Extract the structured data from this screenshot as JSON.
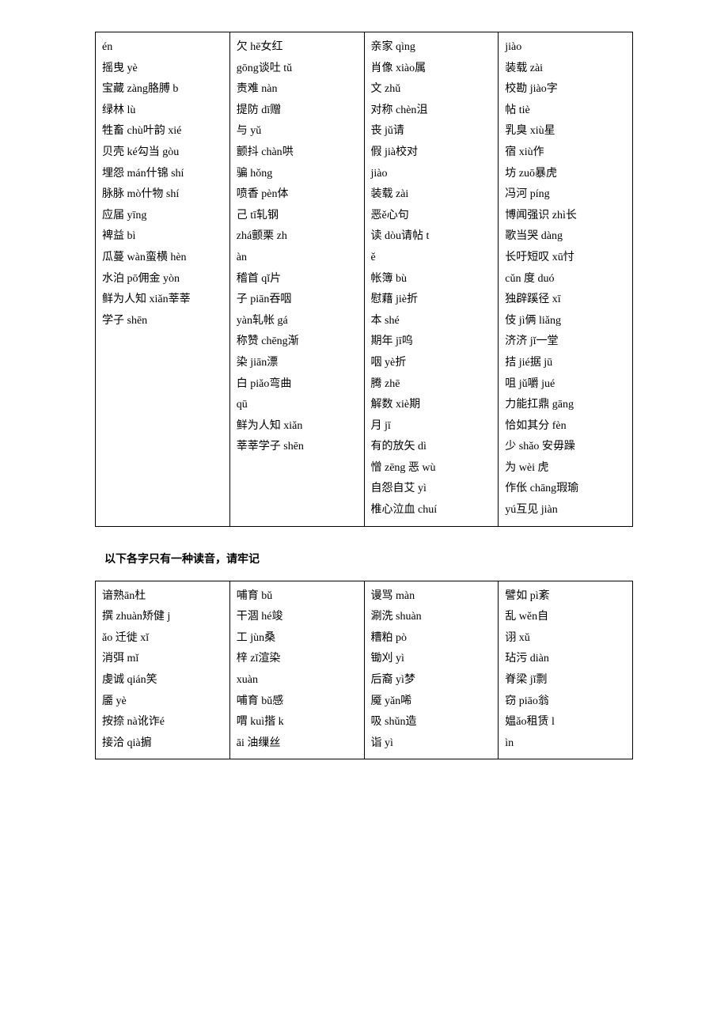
{
  "table1": {
    "columns": 4,
    "cells": [
      [
        [
          [
            "én",
            ""
          ],
          [
            "摇曳 yè",
            ""
          ],
          [
            "",
            ""
          ],
          [
            "宝藏 zàng",
            "胳膊 b"
          ],
          [
            "绿林 lù",
            ""
          ],
          [
            "牲畜 chù",
            "叶韵 xié"
          ],
          [
            "贝壳 ké",
            "勾当 gòu"
          ],
          [
            "埋怨 mán",
            "什锦 shí"
          ],
          [
            "脉脉 mò",
            "什物 shí"
          ],
          [
            "应届 yīng",
            ""
          ],
          [
            "裨益 bì",
            ""
          ],
          [
            "瓜蔓 wàn",
            "蛮横 hèn"
          ],
          [
            "水泊 pō",
            "佣金 yòn"
          ],
          [
            "鲜为人知 xiǎn",
            "莘莘"
          ],
          [
            "学子 shēn",
            ""
          ]
        ],
        [
          [
            "欠 hē",
            "女红"
          ],
          [
            "gōng",
            "谈吐 tǔ"
          ],
          [
            "责难 nàn",
            ""
          ],
          [
            "提防 dī",
            "赠"
          ],
          [
            "与 yǔ",
            ""
          ],
          [
            "颤抖 chàn",
            "哄"
          ],
          [
            "骗 hǒng",
            ""
          ],
          [
            "喷香 pèn",
            "体"
          ],
          [
            "己 tī",
            "轧钢"
          ],
          [
            "zhá",
            "颤栗 zh"
          ],
          [
            "àn",
            ""
          ],
          [
            "稽首 qǐ",
            "片"
          ],
          [
            "子 piān",
            "吞咽"
          ],
          [
            "yàn",
            "轧帐 gá"
          ],
          [
            "称赞 chēng",
            "渐"
          ],
          [
            "染 jiān",
            "漂"
          ],
          [
            "白 piǎo",
            "弯曲"
          ],
          [
            "qū",
            ""
          ],
          [
            "鲜为人知 xiǎn",
            ""
          ],
          [
            "莘莘学子 shēn",
            ""
          ]
        ],
        [
          [
            "亲家 qìng",
            ""
          ],
          [
            "肖像 xiào",
            "属"
          ],
          [
            "文 zhǔ",
            ""
          ],
          [
            "对称 chèn",
            "沮"
          ],
          [
            "丧 jǔ",
            "请"
          ],
          [
            "假 jià",
            "校对"
          ],
          [
            "jiào",
            ""
          ],
          [
            "装载 zài",
            ""
          ],
          [
            "恶ě心",
            "句"
          ],
          [
            "读 dòu",
            "请帖 t"
          ],
          [
            "ě",
            ""
          ],
          [
            "帐簿 bù",
            ""
          ],
          [
            "慰藉 jiè",
            "折"
          ],
          [
            "本 shé",
            ""
          ],
          [
            "期年 jī",
            "呜"
          ],
          [
            "咽 yè",
            "折"
          ],
          [
            "腾 zhē",
            ""
          ],
          [
            "解数 xiè",
            "期"
          ],
          [
            "月 jī",
            ""
          ],
          [
            "有的放矢 dì",
            ""
          ],
          [
            "憎 zēng 恶 wù",
            ""
          ],
          [
            "自怨自艾 yì",
            ""
          ],
          [
            "椎心泣血 chuí",
            ""
          ]
        ],
        [
          [
            "jiào",
            ""
          ],
          [
            "装载 zài",
            ""
          ],
          [
            "校勘 jiào",
            "字"
          ],
          [
            "帖 tiè",
            ""
          ],
          [
            "乳臭 xiù",
            "星"
          ],
          [
            "宿 xiù",
            "作"
          ],
          [
            "坊 zuō",
            "暴虎"
          ],
          [
            "冯河 píng",
            ""
          ],
          [
            "博闻强识 zhì",
            "长"
          ],
          [
            "歌当哭 dàng",
            ""
          ],
          [
            "长吁短叹 xū",
            "忖"
          ],
          [
            "cǔn 度 duó",
            ""
          ],
          [
            "独辟蹊径 xī",
            ""
          ],
          [
            "伎 jì俩 liǎng",
            ""
          ],
          [
            "济济 jǐ一堂",
            ""
          ],
          [
            "拮 jié据 jū",
            ""
          ],
          [
            "咀 jǔ嚼 jué",
            ""
          ],
          [
            "力能扛鼎 gāng",
            ""
          ],
          [
            "恰如其分 fèn",
            ""
          ],
          [
            "少 shǎo 安毋躁",
            ""
          ],
          [
            "为 wèi 虎",
            ""
          ],
          [
            "作伥 chāng",
            "瑕瑜"
          ],
          [
            "yú互见 jiàn",
            ""
          ]
        ]
      ]
    ]
  },
  "midTitle": "以下各字只有一种读音，请牢记",
  "table2": {
    "columns": 4,
    "cells": [
      [
        [
          [
            "谙熟ān",
            "杜"
          ],
          [
            "撰 zhuàn",
            "矫健 j"
          ],
          [
            "ǎo       迁徙 xǐ",
            ""
          ],
          [
            "消弭 mǐ",
            ""
          ],
          [
            "虔诚 qián",
            "笑"
          ],
          [
            "靥 yè",
            ""
          ],
          [
            "按捺 nà",
            "讹诈é"
          ],
          [
            "接洽 qià",
            "掮"
          ]
        ],
        [
          [
            "哺育 bǔ",
            ""
          ],
          [
            "干涸 hé",
            "竣"
          ],
          [
            "工 jùn",
            "桑"
          ],
          [
            "梓 zǐ",
            "渲染"
          ],
          [
            "xuàn",
            ""
          ],
          [
            "哺育 bǔ",
            "感"
          ],
          [
            "喟 kuì",
            "揩 k"
          ],
          [
            "āi 油",
            "缫丝"
          ]
        ],
        [
          [
            "谩骂 màn",
            ""
          ],
          [
            "涮洗 shuàn",
            ""
          ],
          [
            "糟粕 pò",
            ""
          ],
          [
            "锄刈 yì",
            ""
          ],
          [
            "后裔 yì",
            "梦"
          ],
          [
            "魇 yǎn",
            "唏"
          ],
          [
            "吸 shǔn",
            "造"
          ],
          [
            "诣 yì",
            ""
          ]
        ],
        [
          [
            "譬如 pì",
            "紊"
          ],
          [
            "乱 wěn",
            "自"
          ],
          [
            "诩 xǔ",
            ""
          ],
          [
            "玷污 diàn",
            ""
          ],
          [
            "脊梁 jǐ",
            "剽"
          ],
          [
            "窃 piāo",
            "翁"
          ],
          [
            "媪ǎo",
            "租赁 l"
          ],
          [
            "ìn",
            ""
          ]
        ]
      ]
    ]
  }
}
